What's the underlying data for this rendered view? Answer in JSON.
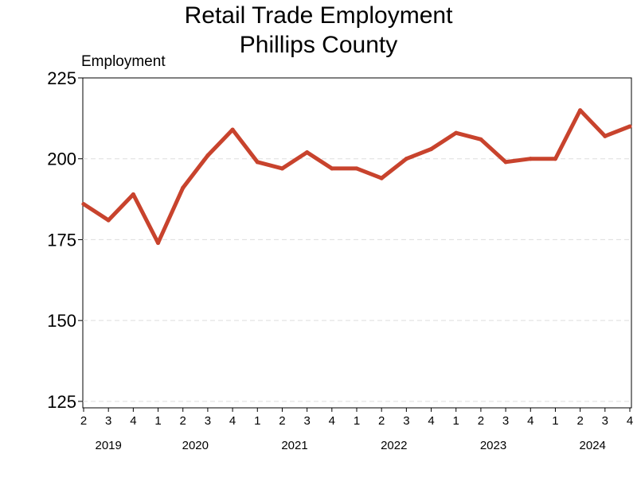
{
  "chart_data": {
    "type": "line",
    "title": [
      "Retail Trade Employment",
      "Phillips County"
    ],
    "ylabel": "Employment",
    "xlabel": "",
    "ylim": [
      123,
      225
    ],
    "yticks": [
      125,
      150,
      175,
      200,
      225
    ],
    "grid": true,
    "series_color": "#c8432d",
    "grid_color": "#dddddd",
    "x": [
      {
        "quarter": "2",
        "year": "2019"
      },
      {
        "quarter": "3",
        "year": "2019"
      },
      {
        "quarter": "4",
        "year": "2019"
      },
      {
        "quarter": "1",
        "year": "2020"
      },
      {
        "quarter": "2",
        "year": "2020"
      },
      {
        "quarter": "3",
        "year": "2020"
      },
      {
        "quarter": "4",
        "year": "2020"
      },
      {
        "quarter": "1",
        "year": "2021"
      },
      {
        "quarter": "2",
        "year": "2021"
      },
      {
        "quarter": "3",
        "year": "2021"
      },
      {
        "quarter": "4",
        "year": "2021"
      },
      {
        "quarter": "1",
        "year": "2022"
      },
      {
        "quarter": "2",
        "year": "2022"
      },
      {
        "quarter": "3",
        "year": "2022"
      },
      {
        "quarter": "4",
        "year": "2022"
      },
      {
        "quarter": "1",
        "year": "2023"
      },
      {
        "quarter": "2",
        "year": "2023"
      },
      {
        "quarter": "3",
        "year": "2023"
      },
      {
        "quarter": "4",
        "year": "2023"
      },
      {
        "quarter": "1",
        "year": "2024"
      },
      {
        "quarter": "2",
        "year": "2024"
      },
      {
        "quarter": "3",
        "year": "2024"
      },
      {
        "quarter": "4",
        "year": "2024"
      }
    ],
    "years": [
      "2019",
      "2020",
      "2021",
      "2022",
      "2023",
      "2024"
    ],
    "series": [
      {
        "values": [
          186,
          181,
          189,
          174,
          191,
          201,
          209,
          199,
          197,
          202,
          197,
          197,
          194,
          200,
          203,
          208,
          206,
          199,
          200,
          200,
          215,
          207,
          210
        ]
      }
    ]
  }
}
